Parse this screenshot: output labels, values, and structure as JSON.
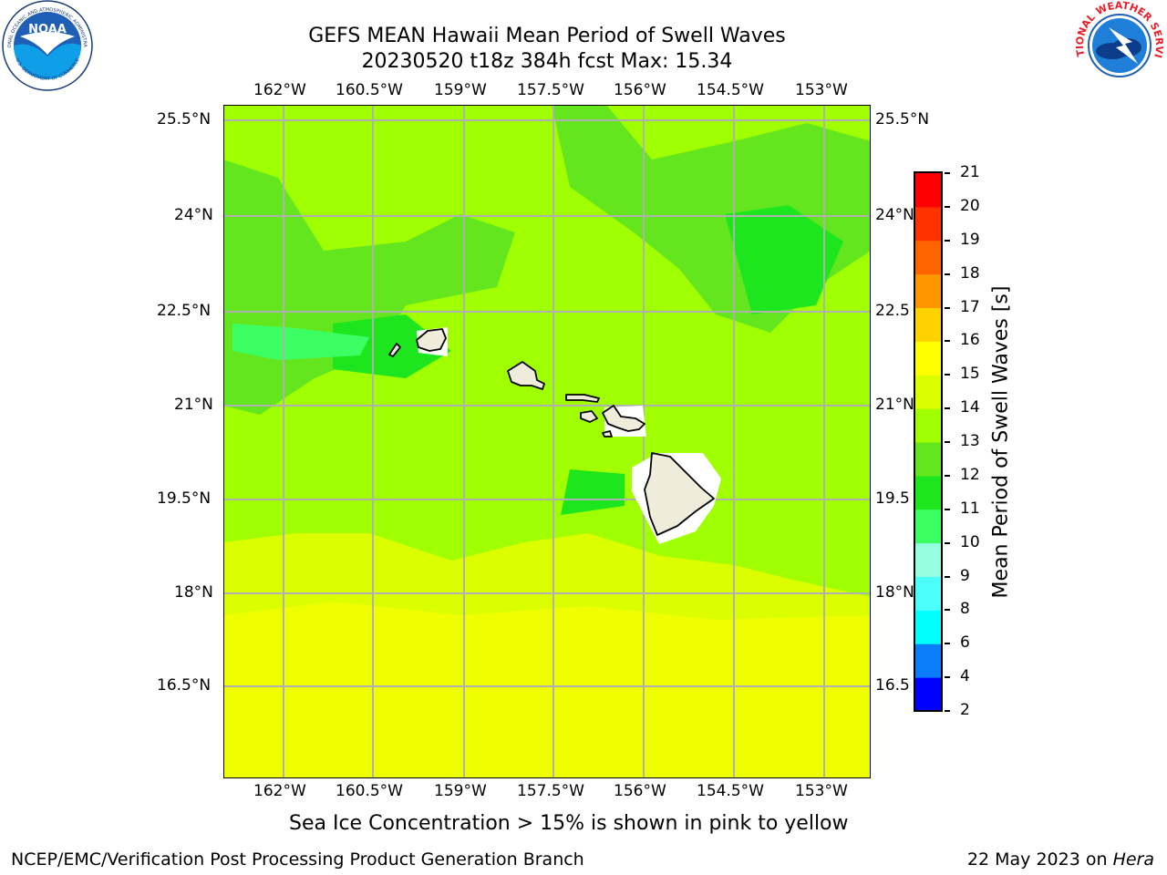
{
  "title": {
    "line1": "GEFS MEAN Hawaii Mean Period of Swell Waves",
    "line2": "20230520 t18z 384h fcst   Max: 15.34"
  },
  "map": {
    "lon_labels": [
      "162°W",
      "160.5°W",
      "159°W",
      "157.5°W",
      "156°W",
      "154.5°W",
      "153°W"
    ],
    "lat_labels": [
      "25.5°N",
      "24°N",
      "22.5°N",
      "21°N",
      "19.5°N",
      "18°N",
      "16.5°N"
    ],
    "lat_labels_right": [
      "25.5°N",
      "24°N",
      "22.5",
      "21°N",
      "19.5",
      "18°N",
      "16.5"
    ],
    "background_value_range_s": [
      11,
      14
    ],
    "gridlines": true
  },
  "colorbar": {
    "label": "Mean Period of Swell Waves [s]",
    "ticks": [
      "2",
      "4",
      "6",
      "8",
      "9",
      "10",
      "11",
      "12",
      "13",
      "14",
      "15",
      "16",
      "17",
      "18",
      "19",
      "20",
      "21"
    ],
    "colors": [
      "#0000ff",
      "#0b7cfa",
      "#00ffff",
      "#4dfffa",
      "#96ffe0",
      "#3cff64",
      "#1ee61e",
      "#64e61e",
      "#a0ff00",
      "#dcff00",
      "#ffff00",
      "#ffd200",
      "#ff9600",
      "#ff6400",
      "#ff3200",
      "#ff0000"
    ]
  },
  "caption": "Sea Ice Concentration > 15% is shown in pink to yellow",
  "footer": {
    "left": "NCEP/EMC/Verification Post Processing Product Generation Branch",
    "right_prefix": "22 May 2023 on ",
    "right_host": "Hera"
  },
  "logos": {
    "noaa_text": "NOAA",
    "noaa_ring": "NATIONAL OCEANIC AND ATMOSPHERIC ADMINISTRATION",
    "noaa_ring_bottom": "U.S. DEPARTMENT OF COMMERCE",
    "nws_ring": "NATIONAL WEATHER SERVICE"
  }
}
